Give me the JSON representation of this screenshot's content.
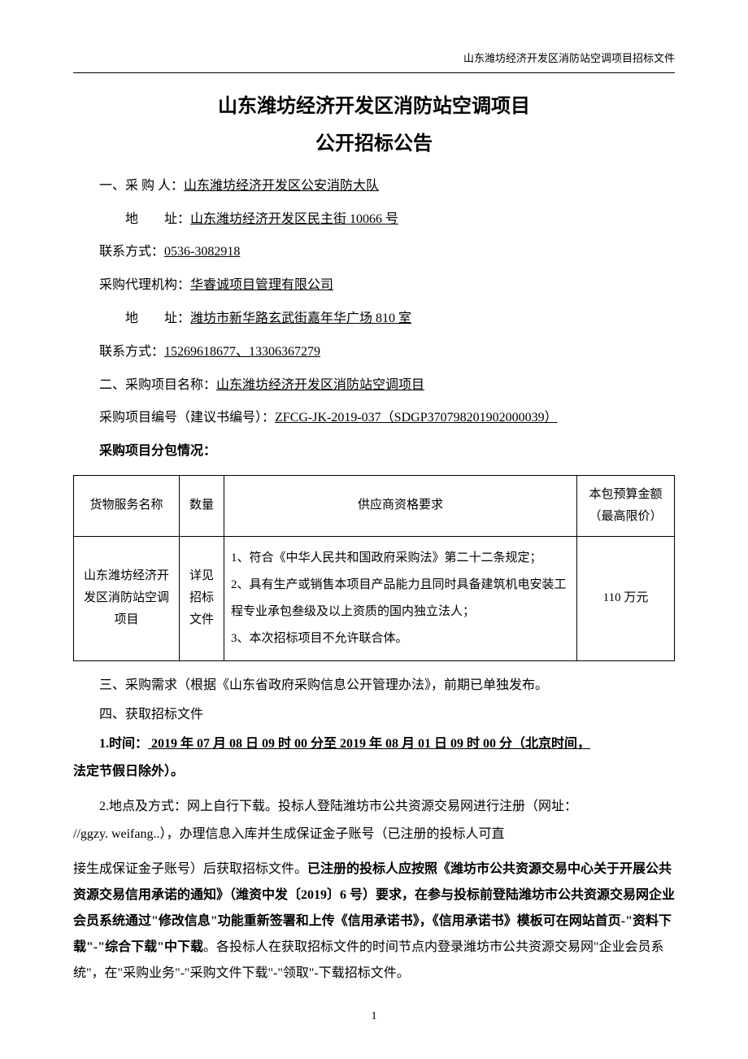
{
  "header": {
    "right_text": "山东潍坊经济开发区消防站空调项目招标文件"
  },
  "title_line1": "山东潍坊经济开发区消防站空调项目",
  "title_line2": "公开招标公告",
  "section1": {
    "purchaser_label": "一、采 购 人：",
    "purchaser_value": "山东潍坊经济开发区公安消防大队",
    "address1_label": "地　　址：",
    "address1_value": "山东潍坊经济开发区民主街 10066 号",
    "contact1_label": "联系方式：",
    "contact1_value": "0536-3082918",
    "agency_label": "采购代理机构：",
    "agency_value": "华睿诚项目管理有限公司",
    "address2_label": "地　　址：",
    "address2_value": "潍坊市新华路玄武街嘉年华广场 810 室 ",
    "contact2_label": "联系方式：",
    "contact2_value": "15269618677、13306367279"
  },
  "section2": {
    "name_label": "二、采购项目名称：",
    "name_value": "山东潍坊经济开发区消防站空调项目",
    "number_label": "采购项目编号（建议书编号）：",
    "number_value": "ZFCG-JK-2019-037（SDGP370798201902000039）",
    "package_label": "采购项目分包情况："
  },
  "table": {
    "headers": {
      "name": "货物服务名称",
      "qty": "数量",
      "req": "供应商资格要求",
      "budget": "本包预算金额（最高限价）"
    },
    "row": {
      "name": "山东潍坊经济开发区消防站空调项目",
      "qty": "详见招标文件",
      "req": "1、符合《中华人民共和国政府采购法》第二十二条规定；\n2、具有生产或销售本项目产品能力且同时具备建筑机电安装工程专业承包叁级及以上资质的国内独立法人；\n3、本次招标项目不允许联合体。",
      "budget": "110 万元"
    }
  },
  "section3": "三、采购需求（根据《山东省政府采购信息公开管理办法》，前期已单独发布。",
  "section4": {
    "heading": "四、获取招标文件",
    "time_label": "1.时间：",
    "time_value": " 2019 年 07 月 08 日 09 时 00 分至 2019 年 08 月 01 日 09 时 00 分（北京时间，",
    "time_suffix": "法定节假日除外）。",
    "place_prefix": "2.地点及方式：网上自行下载。投标人登陆潍坊市公共资源交易网进行注册（网址：",
    "place_line2": "//ggzy. weifang..），办理信息入库并生成保证金子账号（已注册的投标人可直",
    "place_line3_plain": "接生成保证金子账号）后获取招标文件。",
    "place_line3_bold": "已注册的投标人应按照《潍坊市公共资源交易中心关于开展公共资源交易信用承诺的通知》（潍资中发〔2019〕6 号）要求，在参与投标前登陆潍坊市公共资源交易网企业会员系统通过\"修改信息\"功能重新签署和上传《信用承诺书》，《信用承诺书》模板可在网站首页-\"资料下载\"-\"综合下载\"中下载",
    "place_tail_plain": "。各投标人在获取招标文件的时间节点内登录潍坊市公共资源交易网\"企业会员系统\"，在\"采购业务\"-\"采购文件下载\"-\"领取\"-下载招标文件。"
  },
  "page_number": "1"
}
